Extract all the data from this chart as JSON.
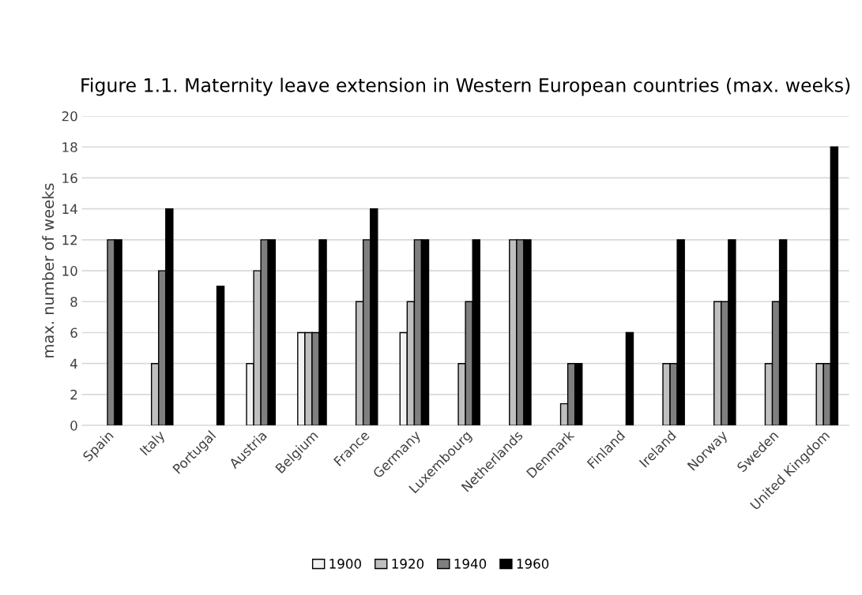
{
  "chart_data": {
    "type": "bar",
    "title": "Figure 1.1. Maternity leave extension in Western European countries (max. weeks)",
    "ylabel": "max. number of weeks",
    "categories": [
      "Spain",
      "Italy",
      "Portugal",
      "Austria",
      "Belgium",
      "France",
      "Germany",
      "Luxembourg",
      "Netherlands",
      "Denmark",
      "Finland",
      "Ireland",
      "Norway",
      "Sweden",
      "United Kingdom"
    ],
    "series": [
      {
        "name": "1900",
        "color": "#f2f2f2",
        "values": [
          null,
          null,
          null,
          4,
          6,
          null,
          6,
          null,
          null,
          null,
          null,
          null,
          null,
          null,
          null
        ]
      },
      {
        "name": "1920",
        "color": "#bfbfbf",
        "values": [
          null,
          4,
          null,
          10,
          6,
          8,
          8,
          4,
          12,
          1.4,
          null,
          4,
          8,
          4,
          4
        ]
      },
      {
        "name": "1940",
        "color": "#7f7f7f",
        "values": [
          12,
          10,
          null,
          12,
          6,
          12,
          12,
          8,
          12,
          4,
          null,
          4,
          8,
          8,
          4
        ]
      },
      {
        "name": "1960",
        "color": "#000000",
        "values": [
          12,
          14,
          9,
          12,
          12,
          14,
          12,
          12,
          12,
          4,
          6,
          12,
          12,
          12,
          18
        ]
      }
    ],
    "ylim": [
      0,
      20
    ],
    "yticks": [
      0,
      2,
      4,
      6,
      8,
      10,
      12,
      14,
      16,
      18,
      20
    ],
    "grid": "y",
    "legend": "bottom"
  }
}
